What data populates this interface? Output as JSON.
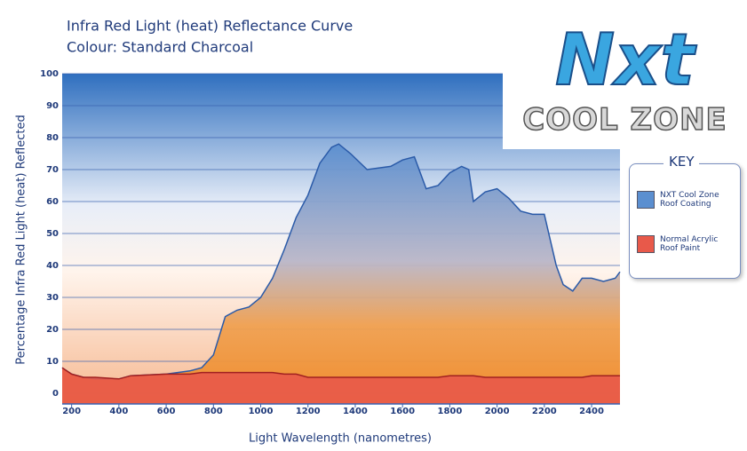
{
  "chart_data": {
    "type": "area",
    "title": "Infra Red Light (heat) Reflectance Curve",
    "subtitle": "Colour: Standard Charcoal",
    "x_label": "Light Wavelength (nanometres)",
    "y_label": "Percentage Infra Red Light (heat) Reflected",
    "legend_title": "KEY",
    "legend": "right",
    "grid": true,
    "x": [
      160,
      200,
      250,
      300,
      400,
      450,
      600,
      700,
      750,
      800,
      850,
      900,
      950,
      1000,
      1050,
      1100,
      1150,
      1200,
      1250,
      1300,
      1330,
      1380,
      1450,
      1550,
      1600,
      1650,
      1700,
      1750,
      1800,
      1850,
      1880,
      1900,
      1950,
      2000,
      2050,
      2100,
      2150,
      2200,
      2250,
      2280,
      2320,
      2360,
      2400,
      2450,
      2500,
      2520
    ],
    "series": [
      {
        "name": "NXT Cool Zone Roof Coating",
        "color": "#5b8fd0",
        "values": [
          8,
          6,
          5,
          4.5,
          4.5,
          5.5,
          6,
          7,
          8,
          12,
          24,
          26,
          27,
          30,
          36,
          45,
          55,
          62,
          72,
          77,
          78,
          75,
          70,
          71,
          73,
          74,
          64,
          65,
          69,
          71,
          70,
          60,
          63,
          64,
          61,
          57,
          56,
          56,
          40,
          34,
          32,
          36,
          36,
          35,
          36,
          38
        ]
      },
      {
        "name": "Normal Acrylic Roof Paint",
        "color": "#e8594a",
        "values": [
          8,
          6,
          5,
          5,
          4.5,
          5.5,
          6,
          6,
          6.5,
          6.5,
          6.5,
          6.5,
          6.5,
          6.5,
          6.5,
          6,
          6,
          5,
          5,
          5,
          5,
          5,
          5,
          5,
          5,
          5,
          5,
          5,
          5.5,
          5.5,
          5.5,
          5.5,
          5,
          5,
          5,
          5,
          5,
          5,
          5,
          5,
          5,
          5,
          5.5,
          5.5,
          5.5,
          5.5
        ]
      }
    ],
    "xlim": [
      160,
      2520
    ],
    "ylim": [
      0,
      100
    ],
    "xticks": [
      200,
      400,
      600,
      800,
      1000,
      1200,
      1400,
      1600,
      1800,
      2000,
      2200,
      2400
    ],
    "yticks": [
      0,
      10,
      20,
      30,
      40,
      50,
      60,
      70,
      80,
      90,
      100
    ]
  },
  "logo": {
    "title": "Nxt",
    "subtitle": "COOL ZONE"
  }
}
